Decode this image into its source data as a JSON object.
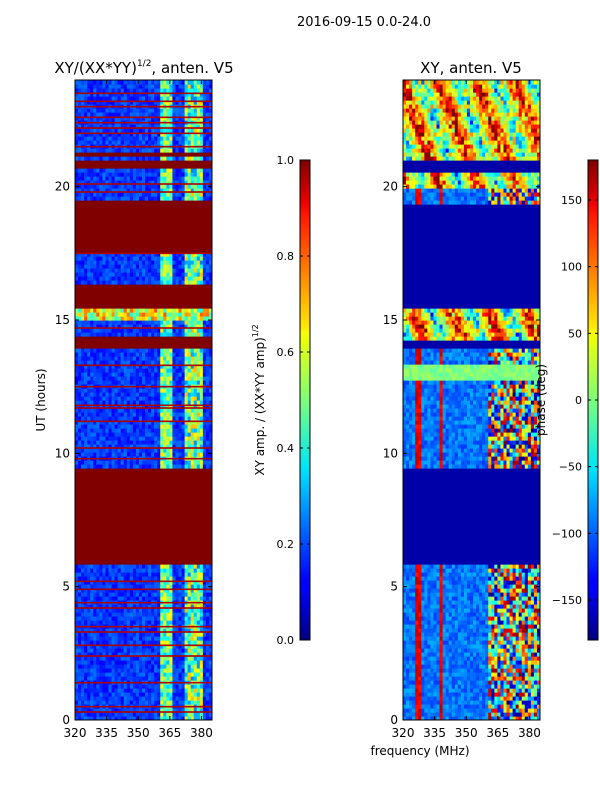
{
  "figure": {
    "suptitle": "2016-09-15 0.0-24.0",
    "xlabel_shared": "frequency (MHz)"
  },
  "chart_data": [
    {
      "type": "heatmap",
      "title_text": "XY/(XX*YY)",
      "title_exponent": "1/2",
      "title_suffix": ", anten. V5",
      "xlim": [
        320,
        385
      ],
      "ylim": [
        0,
        24
      ],
      "xticks": [
        320,
        335,
        350,
        365,
        380
      ],
      "yticks": [
        0,
        5,
        10,
        15,
        20
      ],
      "ylabel": "UT (hours)",
      "colorbar": {
        "label_text": "XY amp. / (XX*YY amp)",
        "label_exponent": "1/2",
        "range": [
          0.0,
          1.0
        ],
        "ticks": [
          0.0,
          0.2,
          0.4,
          0.6,
          0.8,
          1.0
        ],
        "tick_labels": [
          "0.0",
          "0.2",
          "0.4",
          "0.6",
          "0.8",
          "1.0"
        ]
      },
      "saturated_time_bands": [
        [
          5.8,
          9.4
        ],
        [
          14.0,
          14.35
        ],
        [
          15.4,
          16.4
        ],
        [
          17.6,
          19.5
        ],
        [
          20.7,
          21.0
        ],
        [
          21.1,
          21.35
        ]
      ],
      "thin_red_lines": [
        0.3,
        0.5,
        1.4,
        2.4,
        2.8,
        3.3,
        3.5,
        4.2,
        4.4,
        4.9,
        5.2,
        9.8,
        10.2,
        11.2,
        11.7,
        11.8,
        12.5,
        13.3,
        14.7,
        17.5,
        19.8,
        20.1,
        21.5,
        22.0,
        22.2,
        22.4,
        22.6,
        23.0,
        23.2,
        23.5
      ]
    },
    {
      "type": "heatmap",
      "title_text": "XY, anten. V5",
      "xlim": [
        320,
        385
      ],
      "ylim": [
        0,
        24
      ],
      "xticks": [
        320,
        335,
        350,
        365,
        380
      ],
      "yticks": [
        0,
        5,
        10,
        15,
        20
      ],
      "colorbar": {
        "label_text": "phase (deg)",
        "range": [
          -180,
          180
        ],
        "ticks": [
          -150,
          -100,
          -50,
          0,
          50,
          100,
          150
        ],
        "tick_labels": [
          "−150",
          "−100",
          "−50",
          "0",
          "50",
          "100",
          "150"
        ]
      },
      "uniform_time_bands": [
        [
          5.8,
          9.4
        ],
        [
          14.0,
          14.3
        ],
        [
          15.5,
          19.4
        ],
        [
          20.6,
          21.0
        ]
      ],
      "green_time_band": [
        12.7,
        13.3
      ]
    }
  ]
}
